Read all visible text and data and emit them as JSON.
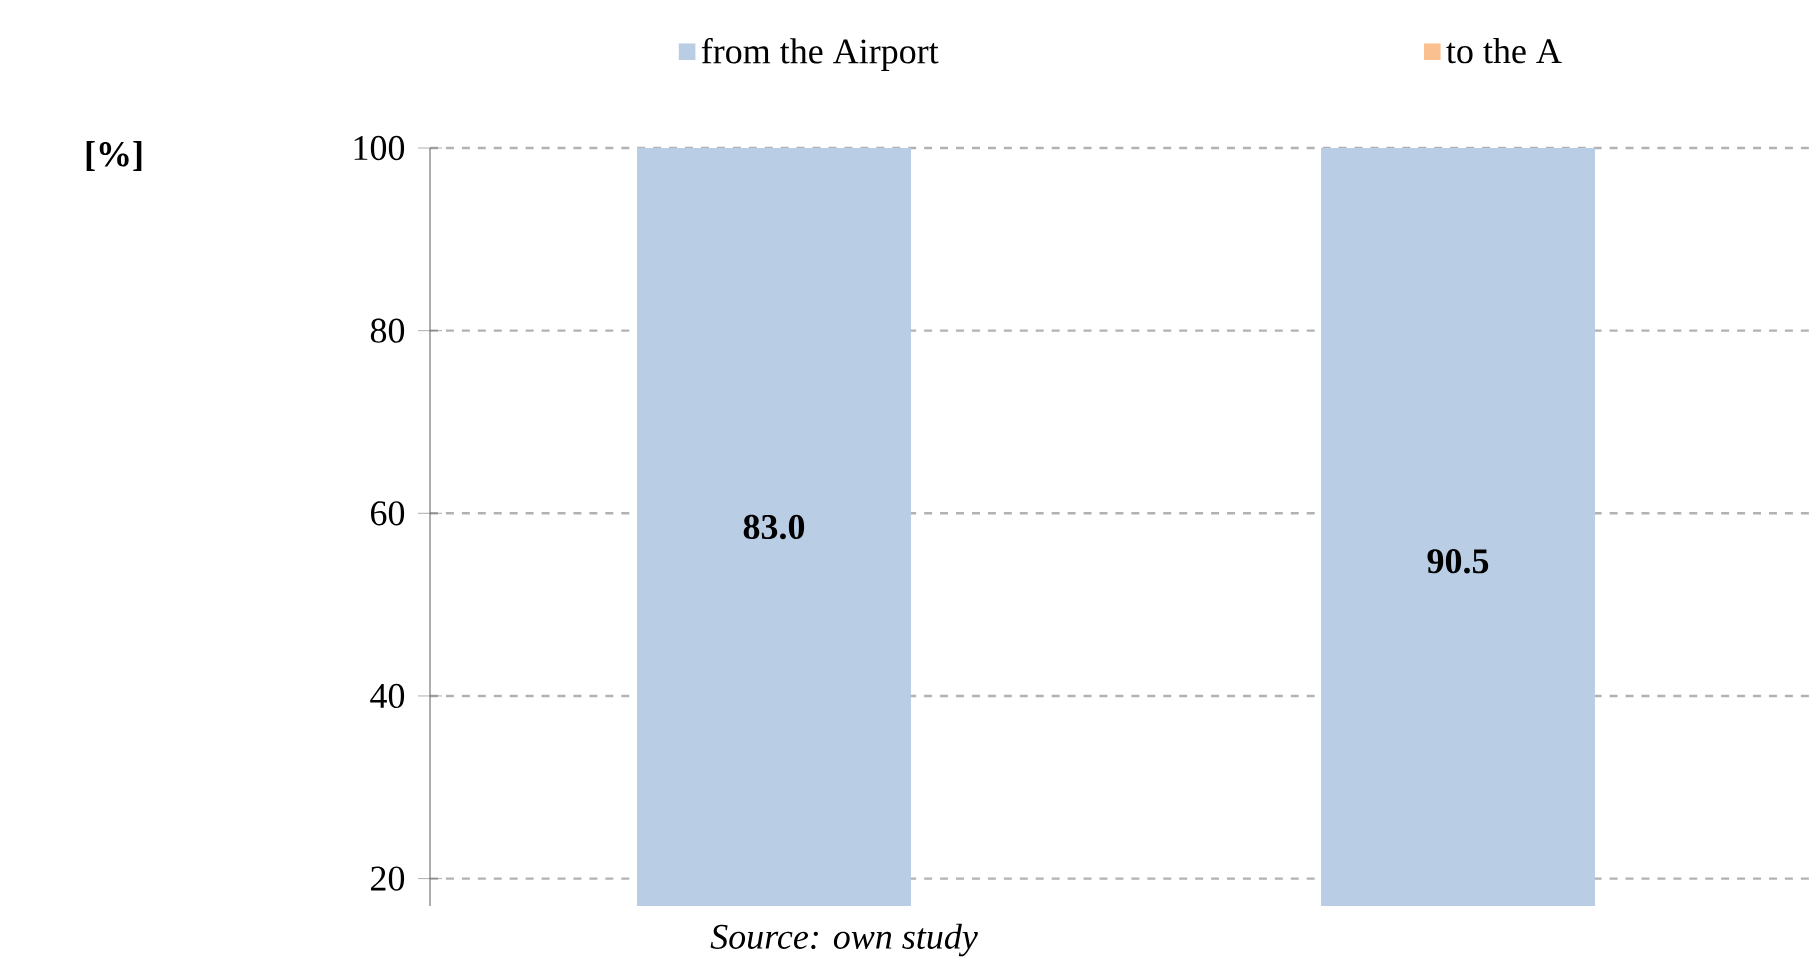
{
  "chart_data": {
    "type": "bar",
    "categories": [
      null,
      null
    ],
    "series": [
      {
        "name": "from the Airport",
        "color": "#b9cde5",
        "values": [
          83.0,
          90.5
        ],
        "base": [
          17.0,
          9.5
        ],
        "value_labels": [
          "83.0",
          "90.5"
        ]
      },
      {
        "name": "to the A",
        "color": "#fac090",
        "values": [
          null,
          null
        ]
      }
    ],
    "ylim": [
      17,
      100
    ],
    "yticks": [
      20,
      40,
      60,
      80,
      100
    ],
    "grid": "y",
    "legend": "top",
    "annotations": [
      "**[%]**",
      "*Source: own study*"
    ]
  }
}
